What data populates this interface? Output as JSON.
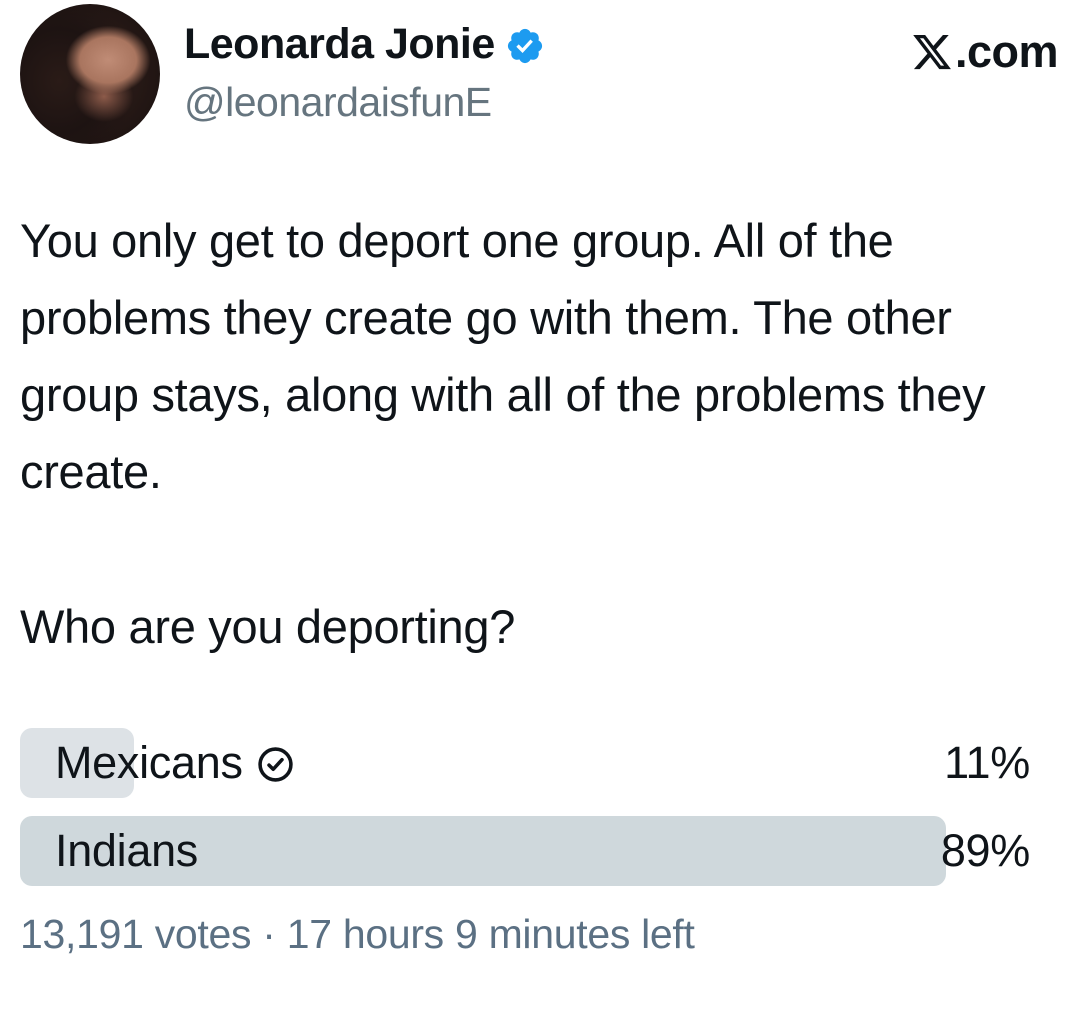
{
  "header": {
    "display_name": "Leonarda Jonie",
    "handle": "@leonardaisfunE",
    "verified": true,
    "watermark_suffix": ".com"
  },
  "tweet": {
    "body": "You only get to deport one group. All of the problems they create go with them. The other group stays, along with all of the problems they create.",
    "question": "Who are you deporting?"
  },
  "poll": {
    "options": [
      {
        "label": "Mexicans",
        "percent_label": "11%",
        "percent_value": 11,
        "voted": true
      },
      {
        "label": "Indians",
        "percent_label": "89%",
        "percent_value": 89,
        "voted": false
      }
    ],
    "footer": "13,191 votes · 17 hours 9 minutes left"
  },
  "icons": {
    "verified_badge": "blue scalloped seal with white checkmark",
    "x_logo": "X brand logo",
    "vote_check": "circled checkmark marking the option the user voted for"
  },
  "colors": {
    "background": "#ffffff",
    "text": "#0f1419",
    "secondary_text": "#66757f",
    "footer_text": "#5b7083",
    "verified_blue": "#1d9bf0",
    "poll_bar_option1": "#dde2e6",
    "poll_bar_option2": "#cfd8dc"
  }
}
